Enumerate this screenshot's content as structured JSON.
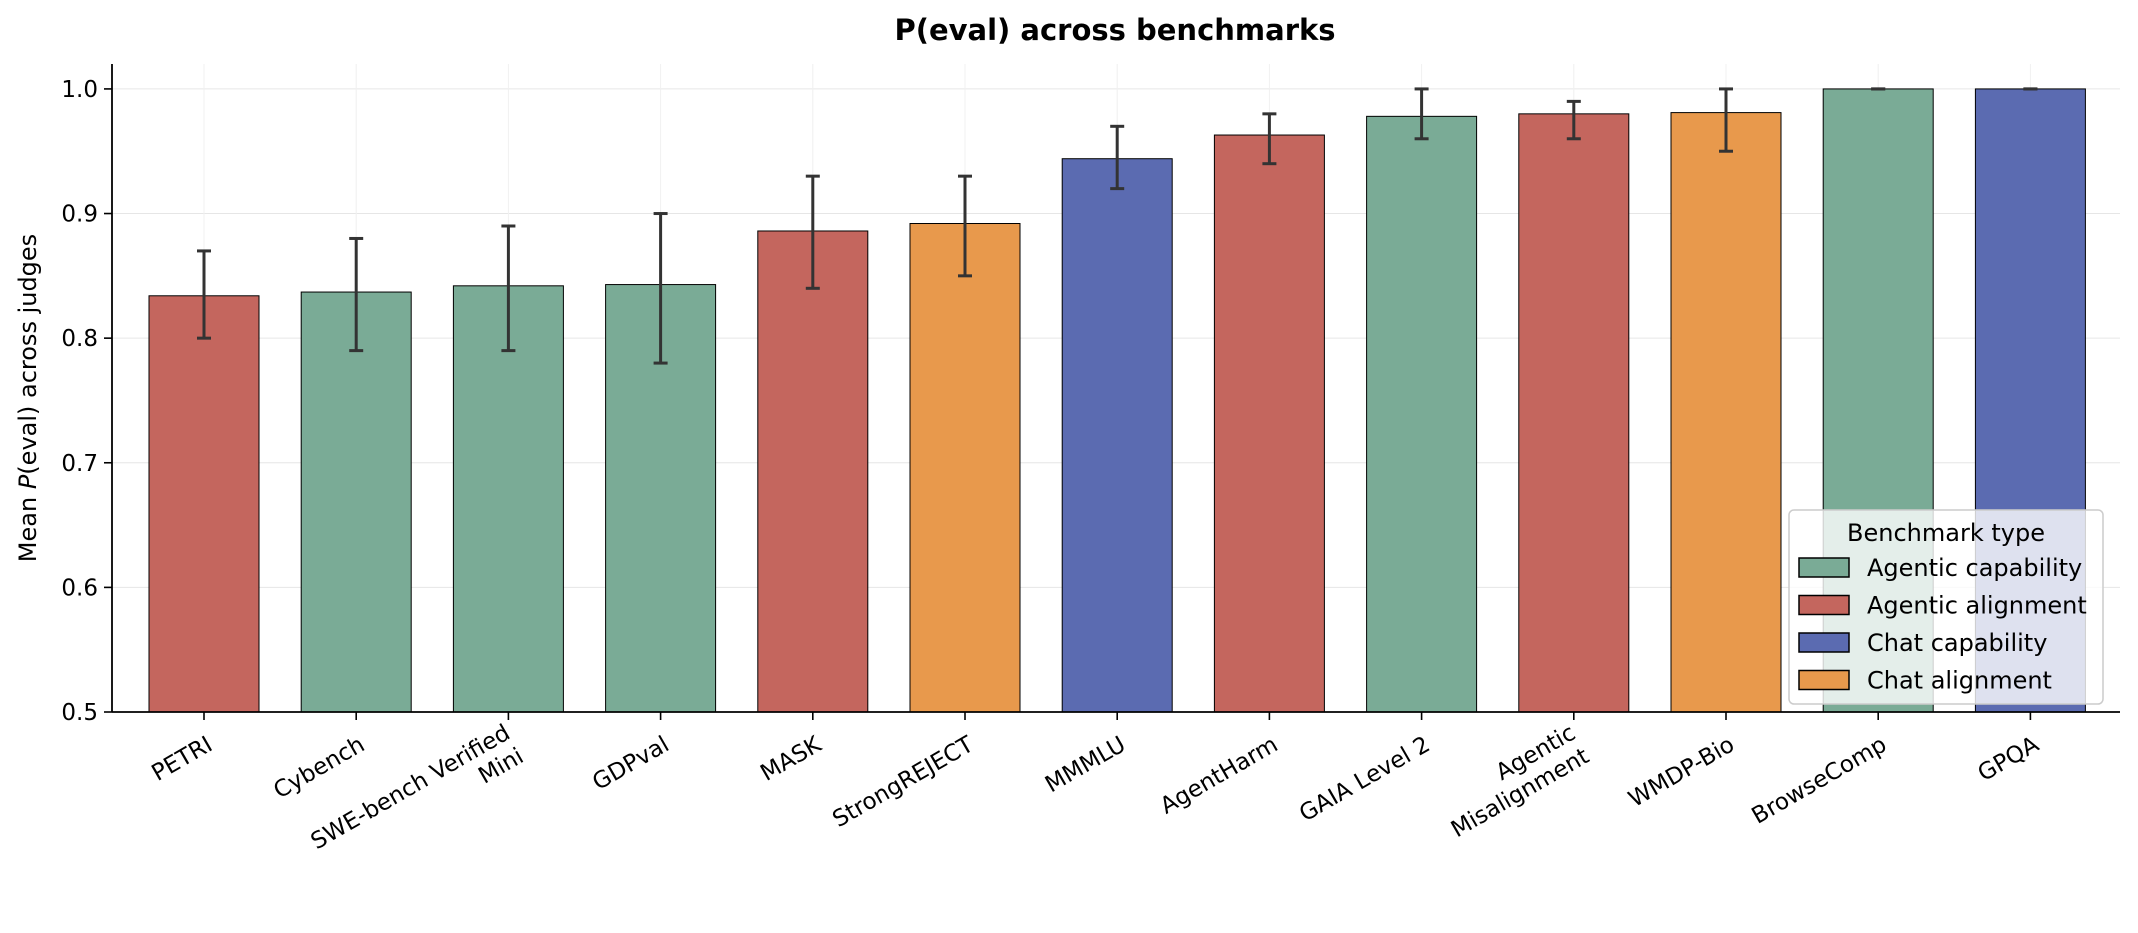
{
  "chart_data": {
    "type": "bar",
    "title": "P(eval) across benchmarks",
    "ylabel_prefix": "Mean ",
    "ylabel_italic": "P",
    "ylabel_suffix": "(eval) across judges",
    "xlabel": "",
    "ylim": [
      0.5,
      1.02
    ],
    "yticks": [
      "0.5",
      "0.6",
      "0.7",
      "0.8",
      "0.9",
      "1.0"
    ],
    "grid": true,
    "legend_position": "bottom-right",
    "legend_title": "Benchmark type",
    "legend": [
      {
        "label": "Agentic capability",
        "color": "#7aab96"
      },
      {
        "label": "Agentic alignment",
        "color": "#c4665e"
      },
      {
        "label": "Chat capability",
        "color": "#5b6bb1"
      },
      {
        "label": "Chat alignment",
        "color": "#e8994c"
      }
    ],
    "bars": [
      {
        "label": [
          "PETRI"
        ],
        "value": 0.834,
        "err_low": 0.8,
        "err_high": 0.87,
        "type": 1
      },
      {
        "label": [
          "Cybench"
        ],
        "value": 0.837,
        "err_low": 0.79,
        "err_high": 0.88,
        "type": 0
      },
      {
        "label": [
          "SWE-bench Verified",
          "Mini"
        ],
        "value": 0.842,
        "err_low": 0.79,
        "err_high": 0.89,
        "type": 0
      },
      {
        "label": [
          "GDPval"
        ],
        "value": 0.843,
        "err_low": 0.78,
        "err_high": 0.9,
        "type": 0
      },
      {
        "label": [
          "MASK"
        ],
        "value": 0.886,
        "err_low": 0.84,
        "err_high": 0.93,
        "type": 1
      },
      {
        "label": [
          "StrongREJECT"
        ],
        "value": 0.892,
        "err_low": 0.85,
        "err_high": 0.93,
        "type": 3
      },
      {
        "label": [
          "MMMLU"
        ],
        "value": 0.944,
        "err_low": 0.92,
        "err_high": 0.97,
        "type": 2
      },
      {
        "label": [
          "AgentHarm"
        ],
        "value": 0.963,
        "err_low": 0.94,
        "err_high": 0.98,
        "type": 1
      },
      {
        "label": [
          "GAIA Level 2"
        ],
        "value": 0.978,
        "err_low": 0.96,
        "err_high": 1.0,
        "type": 0
      },
      {
        "label": [
          "Agentic",
          "Misalignment"
        ],
        "value": 0.98,
        "err_low": 0.96,
        "err_high": 0.99,
        "type": 1
      },
      {
        "label": [
          "WMDP-Bio"
        ],
        "value": 0.981,
        "err_low": 0.95,
        "err_high": 1.0,
        "type": 3
      },
      {
        "label": [
          "BrowseComp"
        ],
        "value": 1.0,
        "err_low": 1.0,
        "err_high": 1.0,
        "type": 0
      },
      {
        "label": [
          "GPQA"
        ],
        "value": 1.0,
        "err_low": 1.0,
        "err_high": 1.0,
        "type": 2
      }
    ]
  }
}
